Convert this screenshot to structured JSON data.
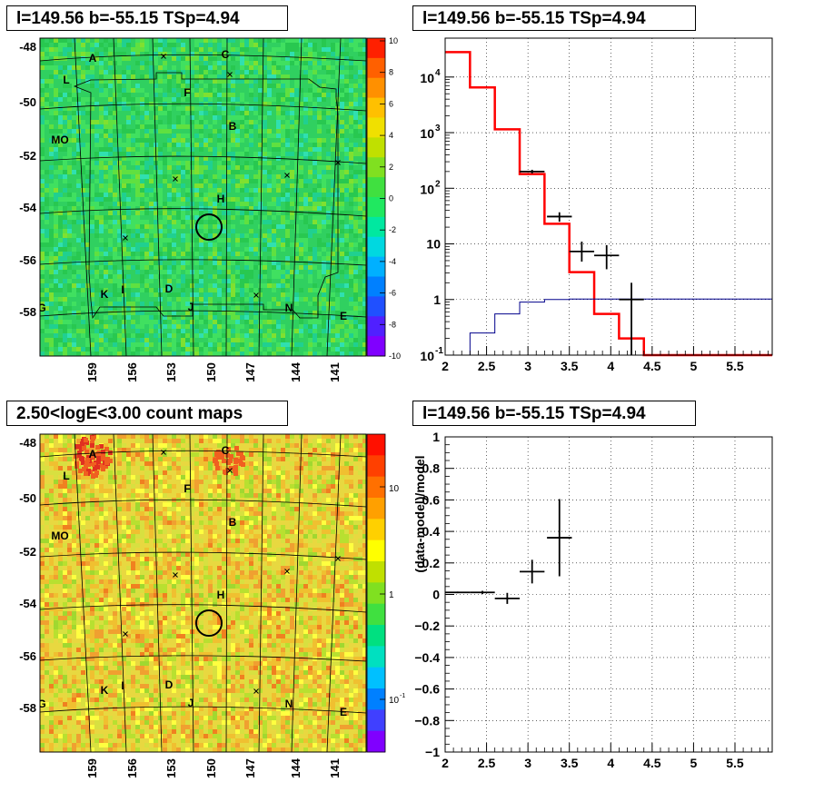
{
  "titles": {
    "sky_map": "l=149.56 b=-55.15 TSp=4.94",
    "spectrum": "l=149.56 b=-55.15 TSp=4.94",
    "count_map": "2.50<logE<3.00 count maps",
    "residual": "l=149.56 b=-55.15 TSp=4.94"
  },
  "colors": {
    "model": "#ff0000",
    "background_model": "#00008b",
    "data": "#000000",
    "palette": [
      "#8000ff",
      "#4040ff",
      "#2080ff",
      "#00c0ff",
      "#00ffc0",
      "#00ff60",
      "#40e040",
      "#a0e020",
      "#ffff00",
      "#ffc000",
      "#ff8000",
      "#ff2000"
    ]
  },
  "sky_maps": {
    "lat_ticks": [
      "-48",
      "-50",
      "-52",
      "-54",
      "-56",
      "-58"
    ],
    "lon_ticks": [
      "159",
      "156",
      "153",
      "150",
      "147",
      "144",
      "141"
    ],
    "source_labels": [
      "A",
      "C",
      "L",
      "F",
      "B",
      "MO",
      "H",
      "I",
      "K",
      "D",
      "J",
      "N",
      "E",
      "G"
    ],
    "colorbar_residual_ticks": [
      "10",
      "8",
      "6",
      "4",
      "2",
      "0",
      "-2",
      "-4",
      "-6",
      "-8",
      "-10"
    ],
    "colorbar_count_ticks": [
      "10",
      "1",
      "10",
      "-1"
    ]
  },
  "chart_data": [
    {
      "type": "line",
      "title": "l=149.56 b=-55.15 TSp=4.94",
      "xlim": [
        2,
        5.95
      ],
      "ylim": [
        0.1,
        50000
      ],
      "yscale": "log",
      "grid": true,
      "x_ticks": [
        "2",
        "2.5",
        "3",
        "3.5",
        "4",
        "4.5",
        "5",
        "5.5"
      ],
      "y_ticks": [
        {
          "base": "10",
          "exp": "4"
        },
        {
          "base": "10",
          "exp": "3"
        },
        {
          "base": "10",
          "exp": "2"
        },
        {
          "base": "10",
          "exp": ""
        },
        {
          "base": "1",
          "exp": ""
        },
        {
          "base": "10",
          "exp": "-1"
        }
      ],
      "series": [
        {
          "role": "model",
          "style": "step",
          "edges": [
            2.0,
            2.3,
            2.6,
            2.9,
            3.2,
            3.5,
            3.8,
            4.1,
            4.4,
            5.95
          ],
          "values": [
            28000,
            6500,
            1150,
            180,
            23,
            3.1,
            0.55,
            0.2,
            0.1
          ]
        },
        {
          "role": "background_model",
          "style": "step",
          "edges": [
            2.3,
            2.6,
            2.9,
            3.2,
            3.5,
            5.95
          ],
          "values": [
            0.25,
            0.55,
            0.9,
            1.0,
            1.02
          ]
        },
        {
          "role": "data",
          "style": "errorbar",
          "points": [
            {
              "x": 3.05,
              "xerr": 0.15,
              "y": 200,
              "ylo": 185,
              "yhi": 215
            },
            {
              "x": 3.38,
              "xerr": 0.15,
              "y": 31,
              "ylo": 25,
              "yhi": 37
            },
            {
              "x": 3.65,
              "xerr": 0.15,
              "y": 7.3,
              "ylo": 4.8,
              "yhi": 11
            },
            {
              "x": 3.95,
              "xerr": 0.15,
              "y": 6.2,
              "ylo": 3.5,
              "yhi": 9.5
            },
            {
              "x": 4.25,
              "xerr": 0.15,
              "y": 1.0,
              "ylo": 0.1,
              "yhi": 2.0
            }
          ]
        }
      ]
    },
    {
      "type": "scatter",
      "title": "l=149.56 b=-55.15 TSp=4.94",
      "ylabel": "(data-model)/model",
      "xlim": [
        2,
        5.95
      ],
      "ylim": [
        -1,
        1
      ],
      "grid": true,
      "x_ticks": [
        "2",
        "2.5",
        "3",
        "3.5",
        "4",
        "4.5",
        "5",
        "5.5"
      ],
      "y_ticks": [
        "1",
        "0.8",
        "0.6",
        "0.4",
        "0.2",
        "0",
        "−0.2",
        "−0.4",
        "−0.6",
        "−0.8",
        "−1"
      ],
      "points": [
        {
          "x": 2.15,
          "xerr": 0.15,
          "y": 0.013,
          "yerr": 0.005
        },
        {
          "x": 2.45,
          "xerr": 0.15,
          "y": 0.013,
          "yerr": 0.01
        },
        {
          "x": 2.75,
          "xerr": 0.15,
          "y": -0.025,
          "yerr": 0.035
        },
        {
          "x": 3.05,
          "xerr": 0.15,
          "y": 0.145,
          "yerr": 0.075
        },
        {
          "x": 3.38,
          "xerr": 0.15,
          "y": 0.36,
          "yerr": 0.245
        }
      ]
    }
  ]
}
